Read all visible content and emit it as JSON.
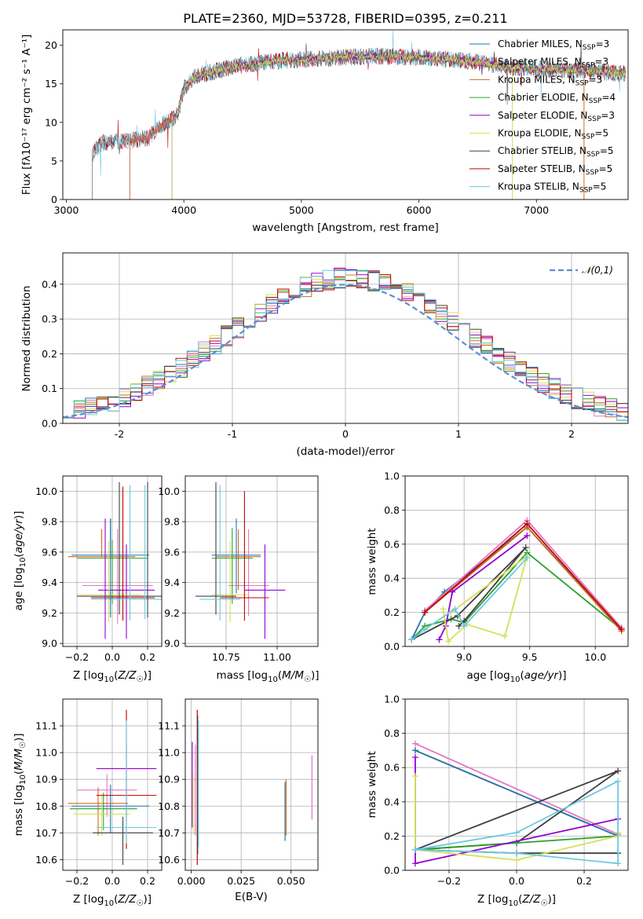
{
  "figure_title": "PLATE=2360, MJD=53728, FIBERID=0395, z=0.211",
  "colors": [
    "#1f77b4",
    "#e377c2",
    "#d2691e",
    "#2ca02c",
    "#9400d3",
    "#d4e157",
    "#404040",
    "#c00000",
    "#6dc9e0"
  ],
  "chart_data": [
    {
      "id": "spectrum",
      "type": "line",
      "xlabel": "wavelength [Angstrom, rest frame]",
      "ylabel": "Flux [f$_\\lambda$10$^{-17}$ erg cm$^{-2}$ s$^{-1}$ A$^{-1}$]",
      "ylabel_display": "Flux [fλ10⁻¹⁷ erg cm⁻² s⁻¹ A⁻¹]",
      "xlim": [
        2970,
        7780
      ],
      "ylim": [
        0,
        22
      ],
      "xticks": [
        3000,
        4000,
        5000,
        6000,
        7000
      ],
      "yticks": [
        0,
        5,
        10,
        15,
        20
      ],
      "grid": false,
      "legend_position": "top-right",
      "series": [
        {
          "name": "Chabrier MILES, N_SSP=3",
          "sub": "SSP",
          "pre": "Chabrier MILES, N",
          "post": "=3",
          "color": "#1f77b4",
          "x_start": 3540
        },
        {
          "name": "Salpeter MILES, N_SSP=3",
          "sub": "SSP",
          "pre": "Salpeter MILES, N",
          "post": "=3",
          "color": "#e377c2",
          "x_start": 3540
        },
        {
          "name": "Kroupa MILES, N_SSP=3",
          "sub": "SSP",
          "pre": "Kroupa MILES, N",
          "post": "=3",
          "color": "#d2691e",
          "x_start": 3540
        },
        {
          "name": "Chabrier ELODIE, N_SSP=4",
          "sub": "SSP",
          "pre": "Chabrier ELODIE, N",
          "post": "=4",
          "color": "#2ca02c",
          "x_start": 3900
        },
        {
          "name": "Salpeter ELODIE, N_SSP=3",
          "sub": "SSP",
          "pre": "Salpeter ELODIE, N",
          "post": "=3",
          "color": "#9400d3",
          "x_start": 3900
        },
        {
          "name": "Kroupa ELODIE, N_SSP=5",
          "sub": "SSP",
          "pre": "Kroupa ELODIE, N",
          "post": "=5",
          "color": "#d4e157",
          "x_start": 3900
        },
        {
          "name": "Chabrier STELIB, N_SSP=5",
          "sub": "SSP",
          "pre": "Chabrier STELIB, N",
          "post": "=5",
          "color": "#404040",
          "x_start": 3220
        },
        {
          "name": "Salpeter STELIB, N_SSP=5",
          "sub": "SSP",
          "pre": "Salpeter STELIB, N",
          "post": "=5",
          "color": "#c00000",
          "x_start": 3220
        },
        {
          "name": "Kroupa STELIB, N_SSP=5",
          "sub": "SSP",
          "pre": "Kroupa STELIB, N",
          "post": "=5",
          "color": "#6dc9e0",
          "x_start": 3220
        }
      ],
      "continuum_knots": {
        "x": [
          3200,
          3300,
          3500,
          3700,
          3800,
          3950,
          4000,
          4100,
          4400,
          4800,
          5200,
          5600,
          6000,
          6400,
          6700,
          7000,
          7400,
          7750
        ],
        "y": [
          5.5,
          7.3,
          7.6,
          8.0,
          9.5,
          11.0,
          14.5,
          16.0,
          17.2,
          18.0,
          18.3,
          18.6,
          18.4,
          18.0,
          17.3,
          16.9,
          16.7,
          16.3
        ]
      },
      "data_cutoff": {
        "x": 7400,
        "y_start": 16.0,
        "y_end": 16.6
      }
    },
    {
      "id": "residuals",
      "type": "line",
      "xlabel": "(data-model)/error",
      "ylabel": "Normed distribution",
      "xlim": [
        -2.5,
        2.5
      ],
      "ylim": [
        0,
        0.49
      ],
      "xticks": [
        -2,
        -1,
        0,
        1,
        2
      ],
      "yticks": [
        0.0,
        0.1,
        0.2,
        0.3,
        0.4
      ],
      "grid": true,
      "legend_position": "top-right",
      "reference": {
        "name": "𝒩(0,1)",
        "color": "#5b8dd6",
        "style": "dashed",
        "mean": 0,
        "sigma": 1
      },
      "bin_width": 0.1,
      "bin_start": -2.5
    },
    {
      "id": "age-vs-Z",
      "type": "scatter",
      "xlabel": "Z [log10(Z/Z☉)]",
      "ylabel": "age  [log10(age/yr)]",
      "xlim": [
        -0.28,
        0.28
      ],
      "ylim": [
        8.98,
        10.1
      ],
      "xticks": [
        -0.2,
        0.0,
        0.2
      ],
      "xtick_labels": [
        "−0.2",
        "0.0",
        "0.2"
      ],
      "yticks": [
        9.0,
        9.2,
        9.4,
        9.6,
        9.8,
        10.0
      ],
      "grid": true,
      "points": [
        {
          "x": -0.01,
          "xerr": 0.22,
          "y": 9.58,
          "yerr": [
            0.0,
            0.24
          ],
          "color": "#1f77b4"
        },
        {
          "x": 0.03,
          "xerr": 0.2,
          "y": 9.38,
          "yerr": [
            0.25,
            0.37
          ],
          "color": "#e377c2"
        },
        {
          "x": -0.06,
          "xerr": 0.19,
          "y": 9.57,
          "yerr": [
            0.0,
            0.18
          ],
          "color": "#d2691e"
        },
        {
          "x": 0.0,
          "xerr": 0.2,
          "y": 9.56,
          "yerr": [
            0.3,
            0.12
          ],
          "color": "#2ca02c"
        },
        {
          "x": 0.08,
          "xerr": 0.16,
          "y": 9.35,
          "yerr": [
            0.32,
            0.3
          ],
          "color": "#9400d3"
        },
        {
          "x": -0.02,
          "xerr": 0.18,
          "y": 9.32,
          "yerr": [
            0.18,
            0.35
          ],
          "color": "#d4e157"
        },
        {
          "x": 0.04,
          "xerr": 0.24,
          "y": 9.31,
          "yerr": [
            0.12,
            0.75
          ],
          "color": "#404040"
        },
        {
          "x": 0.06,
          "xerr": 0.18,
          "y": 9.3,
          "yerr": [
            0.15,
            0.73
          ],
          "color": "#c00000"
        },
        {
          "x": 0.1,
          "xerr": 0.22,
          "y": 9.29,
          "yerr": [
            0.14,
            0.75
          ],
          "color": "#6dc9e0"
        }
      ],
      "vertical_bars": [
        {
          "x": -0.04,
          "y0": 9.03,
          "y1": 9.82,
          "color": "#9400d3"
        },
        {
          "x": -0.01,
          "y0": 9.17,
          "y1": 9.82,
          "color": "#1f77b4"
        },
        {
          "x": 0.185,
          "y0": 9.16,
          "y1": 10.04,
          "color": "#6dc9e0"
        },
        {
          "x": 0.2,
          "y0": 9.17,
          "y1": 10.06,
          "color": "#404040"
        }
      ]
    },
    {
      "id": "age-vs-mass",
      "type": "scatter",
      "xlabel": "mass [log10(M/M☉)]",
      "ylabel": "",
      "xlim": [
        10.55,
        11.2
      ],
      "ylim": [
        8.98,
        10.1
      ],
      "xticks": [
        10.75,
        11.0
      ],
      "xtick_labels": [
        "10.75",
        "11.00"
      ],
      "yticks": [
        9.0,
        9.2,
        9.4,
        9.6,
        9.8,
        10.0
      ],
      "grid": true,
      "points": [
        {
          "x": 10.8,
          "xerr": 0.12,
          "y": 9.58,
          "yerr": [
            0.25,
            0.24
          ],
          "color": "#1f77b4"
        },
        {
          "x": 10.86,
          "xerr": 0.1,
          "y": 9.38,
          "yerr": [
            0.2,
            0.37
          ],
          "color": "#e377c2"
        },
        {
          "x": 10.81,
          "xerr": 0.11,
          "y": 9.57,
          "yerr": [
            0.22,
            0.18
          ],
          "color": "#d2691e"
        },
        {
          "x": 10.78,
          "xerr": 0.1,
          "y": 9.56,
          "yerr": [
            0.3,
            0.2
          ],
          "color": "#2ca02c"
        },
        {
          "x": 10.94,
          "xerr": 0.1,
          "y": 9.35,
          "yerr": [
            0.32,
            0.3
          ],
          "color": "#9400d3"
        },
        {
          "x": 10.77,
          "xerr": 0.09,
          "y": 9.32,
          "yerr": [
            0.18,
            0.35
          ],
          "color": "#d4e157"
        },
        {
          "x": 10.7,
          "xerr": 0.1,
          "y": 9.31,
          "yerr": [
            0.12,
            0.75
          ],
          "color": "#404040"
        },
        {
          "x": 10.84,
          "xerr": 0.12,
          "y": 9.3,
          "yerr": [
            0.15,
            0.7
          ],
          "color": "#c00000"
        },
        {
          "x": 10.72,
          "xerr": 0.1,
          "y": 9.29,
          "yerr": [
            0.14,
            0.75
          ],
          "color": "#6dc9e0"
        }
      ]
    },
    {
      "id": "massweight-vs-age",
      "type": "line",
      "xlabel": "age  [log10(age/yr)]",
      "ylabel": "mass weight",
      "xlim": [
        8.55,
        10.25
      ],
      "ylim": [
        0,
        1.0
      ],
      "xticks": [
        9.0,
        9.5,
        10.0
      ],
      "xtick_labels": [
        "9.0",
        "9.5",
        "10.0"
      ],
      "yticks": [
        0.0,
        0.2,
        0.4,
        0.6,
        0.8,
        1.0
      ],
      "grid": true,
      "series": [
        {
          "color": "#2ca02c",
          "x": [
            8.6,
            8.7,
            8.9,
            9.0,
            9.48,
            10.2
          ],
          "y": [
            0.04,
            0.12,
            0.16,
            0.14,
            0.55,
            0.1
          ]
        },
        {
          "color": "#1f77b4",
          "x": [
            8.6,
            8.7,
            8.85,
            9.48,
            10.2
          ],
          "y": [
            0.04,
            0.2,
            0.32,
            0.7,
            0.1
          ]
        },
        {
          "color": "#d2691e",
          "x": [
            8.7,
            9.48,
            10.2
          ],
          "y": [
            0.2,
            0.7,
            0.09
          ]
        },
        {
          "color": "#e377c2",
          "x": [
            8.7,
            9.48,
            10.2
          ],
          "y": [
            0.21,
            0.74,
            0.11
          ]
        },
        {
          "color": "#404040",
          "x": [
            8.6,
            8.95,
            9.47,
            9.0,
            8.96
          ],
          "y": [
            0.04,
            0.18,
            0.58,
            0.15,
            0.12
          ]
        },
        {
          "color": "#9400d3",
          "x": [
            8.81,
            8.86,
            8.91,
            9.48
          ],
          "y": [
            0.04,
            0.12,
            0.32,
            0.65
          ]
        },
        {
          "color": "#d4e157",
          "x": [
            8.84,
            8.88,
            9.02,
            9.31,
            9.48,
            8.9
          ],
          "y": [
            0.22,
            0.03,
            0.13,
            0.06,
            0.53,
            0.2
          ]
        },
        {
          "color": "#6dc9e0",
          "x": [
            8.6,
            8.7,
            8.93,
            9.0,
            9.48
          ],
          "y": [
            0.04,
            0.1,
            0.22,
            0.12,
            0.52
          ]
        },
        {
          "color": "#c00000",
          "x": [
            8.7,
            9.48,
            10.2
          ],
          "y": [
            0.2,
            0.72,
            0.1
          ]
        }
      ]
    },
    {
      "id": "mass-vs-Z",
      "type": "scatter",
      "xlabel": "Z [log10(Z/Z☉)]",
      "ylabel": "mass [log10(M/M☉)]",
      "xlim": [
        -0.28,
        0.28
      ],
      "ylim": [
        10.56,
        11.2
      ],
      "xticks": [
        -0.2,
        0.0,
        0.2
      ],
      "xtick_labels": [
        "−0.2",
        "0.0",
        "0.2"
      ],
      "yticks": [
        10.6,
        10.7,
        10.8,
        10.9,
        11.0,
        11.1
      ],
      "grid": true,
      "points": [
        {
          "x": -0.01,
          "xerr": 0.22,
          "y": 10.8,
          "yerr": [
            0.1,
            0.08
          ],
          "color": "#1f77b4"
        },
        {
          "x": -0.03,
          "xerr": 0.17,
          "y": 10.86,
          "yerr": [
            0.1,
            0.06
          ],
          "color": "#e377c2"
        },
        {
          "x": -0.08,
          "xerr": 0.17,
          "y": 10.81,
          "yerr": [
            0.12,
            0.06
          ],
          "color": "#d2691e"
        },
        {
          "x": -0.05,
          "xerr": 0.19,
          "y": 10.79,
          "yerr": [
            0.08,
            0.06
          ],
          "color": "#2ca02c"
        },
        {
          "x": 0.08,
          "xerr": 0.17,
          "y": 10.94,
          "yerr": [
            0.2,
            0.1
          ],
          "color": "#9400d3"
        },
        {
          "x": -0.06,
          "xerr": 0.16,
          "y": 10.77,
          "yerr": [
            0.08,
            0.07
          ],
          "color": "#d4e157"
        },
        {
          "x": 0.06,
          "xerr": 0.17,
          "y": 10.7,
          "yerr": [
            0.12,
            0.06
          ],
          "color": "#404040"
        },
        {
          "x": 0.08,
          "xerr": 0.17,
          "y": 10.84,
          "yerr": [
            0.2,
            0.32
          ],
          "color": "#c00000"
        },
        {
          "x": 0.08,
          "xerr": 0.17,
          "y": 10.72,
          "yerr": [
            0.06,
            0.4
          ],
          "color": "#6dc9e0"
        }
      ]
    },
    {
      "id": "mass-vs-EBV",
      "type": "scatter",
      "xlabel": "E(B-V)",
      "ylabel": "",
      "xlim": [
        -0.003,
        0.0635
      ],
      "ylim": [
        10.56,
        11.2
      ],
      "xticks": [
        0.0,
        0.025,
        0.05
      ],
      "xtick_labels": [
        "0.000",
        "0.025",
        "0.050"
      ],
      "yticks": [
        10.6,
        10.7,
        10.8,
        10.9,
        11.0,
        11.1
      ],
      "grid": true,
      "bars": [
        {
          "x": 0.0005,
          "y0": 10.72,
          "y1": 11.04,
          "color": "#9400d3"
        },
        {
          "x": 0.0009,
          "y0": 10.7,
          "y1": 10.92,
          "color": "#d4e157"
        },
        {
          "x": 0.002,
          "y0": 10.69,
          "y1": 11.03,
          "color": "#e377c2"
        },
        {
          "x": 0.003,
          "y0": 10.58,
          "y1": 11.16,
          "color": "#c00000"
        },
        {
          "x": 0.0032,
          "y0": 10.62,
          "y1": 11.14,
          "color": "#404040"
        },
        {
          "x": 0.0036,
          "y0": 10.65,
          "y1": 11.12,
          "color": "#6dc9e0"
        },
        {
          "x": 0.047,
          "y0": 10.67,
          "y1": 10.89,
          "color": "#1f77b4"
        },
        {
          "x": 0.0475,
          "y0": 10.69,
          "y1": 10.9,
          "color": "#d2691e"
        },
        {
          "x": 0.0605,
          "y0": 10.75,
          "y1": 10.99,
          "color": "#e377c2"
        }
      ]
    },
    {
      "id": "massweight-vs-Z",
      "type": "line",
      "xlabel": "Z [log10(Z/Z☉)]",
      "ylabel": "mass weight",
      "xlim": [
        -0.33,
        0.33
      ],
      "ylim": [
        0,
        1.0
      ],
      "xticks": [
        -0.2,
        0.0,
        0.2
      ],
      "xtick_labels": [
        "−0.2",
        "0.0",
        "0.2"
      ],
      "yticks": [
        0.0,
        0.2,
        0.4,
        0.6,
        0.8,
        1.0
      ],
      "grid": true,
      "series": [
        {
          "color": "#d2691e",
          "x": [
            -0.3,
            0.3
          ],
          "y": [
            0.7,
            0.2
          ]
        },
        {
          "color": "#e377c2",
          "x": [
            -0.3,
            0.3
          ],
          "y": [
            0.74,
            0.21
          ]
        },
        {
          "color": "#1f77b4",
          "x": [
            -0.3,
            0.3
          ],
          "y": [
            0.7,
            0.2
          ]
        },
        {
          "color": "#404040",
          "x": [
            -0.3,
            0.0,
            0.3,
            -0.3,
            0.0,
            0.3
          ],
          "y": [
            0.12,
            0.16,
            0.58,
            0.12,
            0.1,
            0.1
          ]
        },
        {
          "color": "#2ca02c",
          "x": [
            -0.3,
            0.0,
            0.3
          ],
          "y": [
            0.12,
            0.16,
            0.2
          ]
        },
        {
          "color": "#9400d3",
          "x": [
            -0.3,
            -0.3,
            0.3
          ],
          "y": [
            0.66,
            0.04,
            0.3
          ]
        },
        {
          "color": "#d4e157",
          "x": [
            -0.3,
            -0.3,
            0.0,
            0.3,
            0.3
          ],
          "y": [
            0.55,
            0.12,
            0.06,
            0.2,
            0.22
          ]
        },
        {
          "color": "#6dc9e0",
          "x": [
            -0.3,
            0.0,
            0.3,
            0.3,
            0.0,
            -0.3
          ],
          "y": [
            0.12,
            0.22,
            0.52,
            0.04,
            0.1,
            0.12
          ]
        }
      ]
    }
  ]
}
